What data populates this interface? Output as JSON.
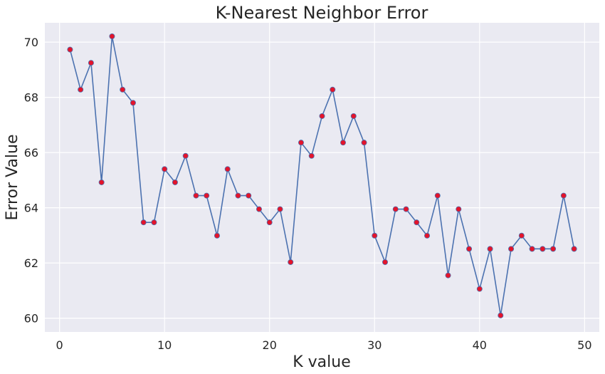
{
  "chart_data": {
    "type": "line",
    "title": "K-Nearest Neighbor Error",
    "xlabel": "K value",
    "ylabel": "Error Value",
    "xlim": [
      -1.4,
      51.4
    ],
    "ylim": [
      59.5,
      70.7
    ],
    "xticks": [
      0,
      10,
      20,
      30,
      40,
      50
    ],
    "yticks": [
      60,
      62,
      64,
      66,
      68,
      70
    ],
    "grid": true,
    "line_color": "#4c72b0",
    "marker_color": "#e3142b",
    "background": "#eaeaf2",
    "x": [
      1,
      2,
      3,
      4,
      5,
      6,
      7,
      8,
      9,
      10,
      11,
      12,
      13,
      14,
      15,
      16,
      17,
      18,
      19,
      20,
      21,
      22,
      23,
      24,
      25,
      26,
      27,
      28,
      29,
      30,
      31,
      32,
      33,
      34,
      35,
      36,
      37,
      38,
      39,
      40,
      41,
      42,
      43,
      44,
      45,
      46,
      47,
      48,
      49
    ],
    "values": [
      69.73,
      68.28,
      69.25,
      64.92,
      70.21,
      68.28,
      67.8,
      63.47,
      63.47,
      65.4,
      64.92,
      65.88,
      64.44,
      64.44,
      62.99,
      65.4,
      64.44,
      64.44,
      63.95,
      63.47,
      63.95,
      62.03,
      66.36,
      65.88,
      67.32,
      68.28,
      66.36,
      67.32,
      66.36,
      62.99,
      62.03,
      63.95,
      63.95,
      63.47,
      62.99,
      64.44,
      61.55,
      63.95,
      62.51,
      61.06,
      62.51,
      60.1,
      62.51,
      62.99,
      62.51,
      62.51,
      62.51,
      64.44,
      62.51
    ]
  }
}
